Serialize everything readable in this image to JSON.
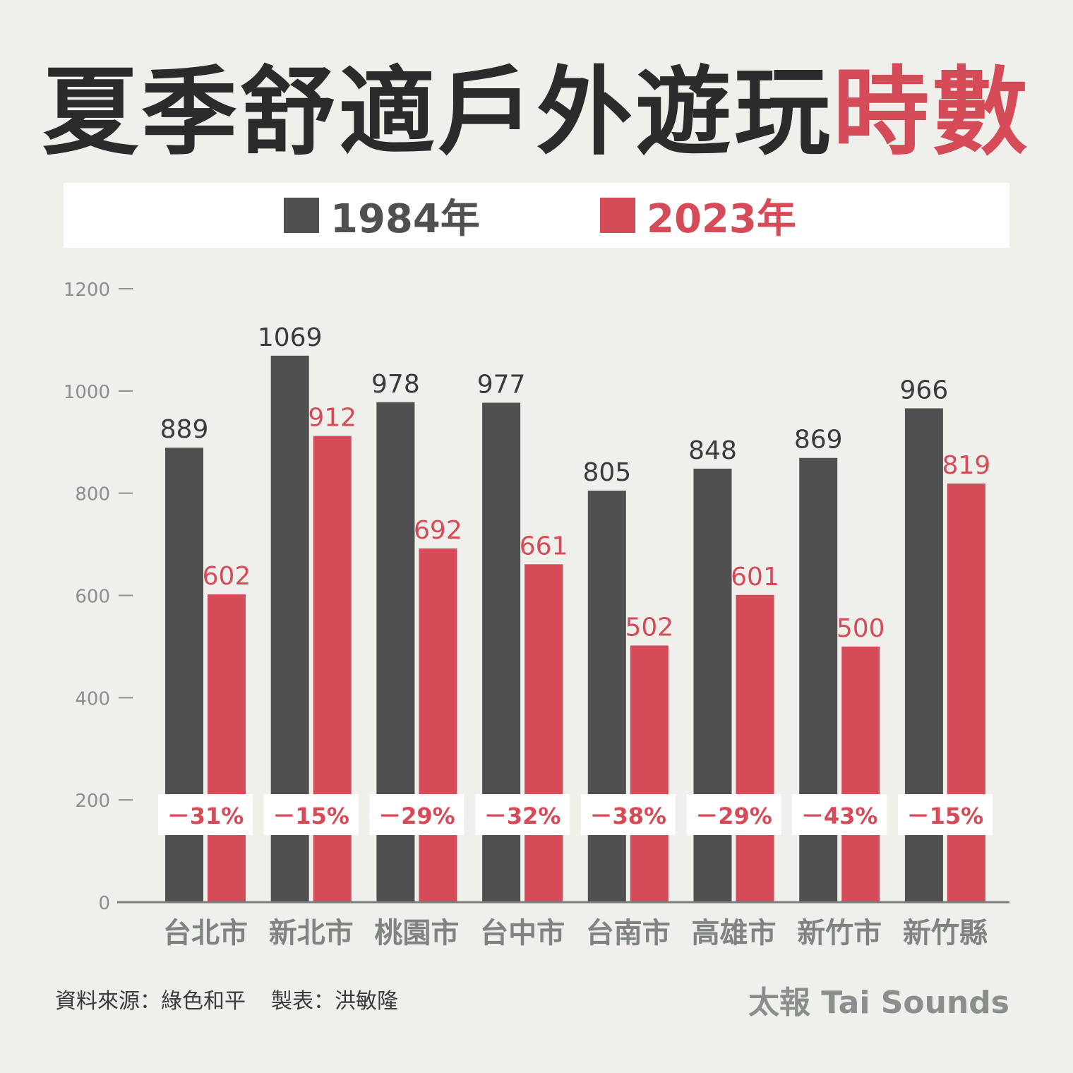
{
  "title": {
    "main": "夏季舒適戶外遊玩",
    "highlight": "時數"
  },
  "legend": [
    {
      "label": "1984年",
      "color": "#505050"
    },
    {
      "label": "2023年",
      "color": "#d64b58"
    }
  ],
  "footer": {
    "source": "資料來源：綠色和平",
    "maker": "製表：洪敏隆",
    "brand": "太報 Tai Sounds"
  },
  "chart_data": {
    "type": "bar",
    "title": "夏季舒適戶外遊玩時數",
    "categories": [
      "台北市",
      "新北市",
      "桃園市",
      "台中市",
      "台南市",
      "高雄市",
      "新竹市",
      "新竹縣"
    ],
    "series": [
      {
        "name": "1984年",
        "values": [
          889,
          1069,
          978,
          977,
          805,
          848,
          869,
          966
        ],
        "color": "#505050"
      },
      {
        "name": "2023年",
        "values": [
          602,
          912,
          692,
          661,
          502,
          601,
          500,
          819
        ],
        "color": "#d64b58"
      }
    ],
    "change_labels": [
      "－31%",
      "－15%",
      "－29%",
      "－32%",
      "－38%",
      "－29%",
      "－43%",
      "－15%"
    ],
    "ylim": [
      0,
      1200
    ],
    "yticks": [
      0,
      200,
      400,
      600,
      800,
      1000,
      1200
    ],
    "grid": false,
    "legend_position": "top"
  }
}
